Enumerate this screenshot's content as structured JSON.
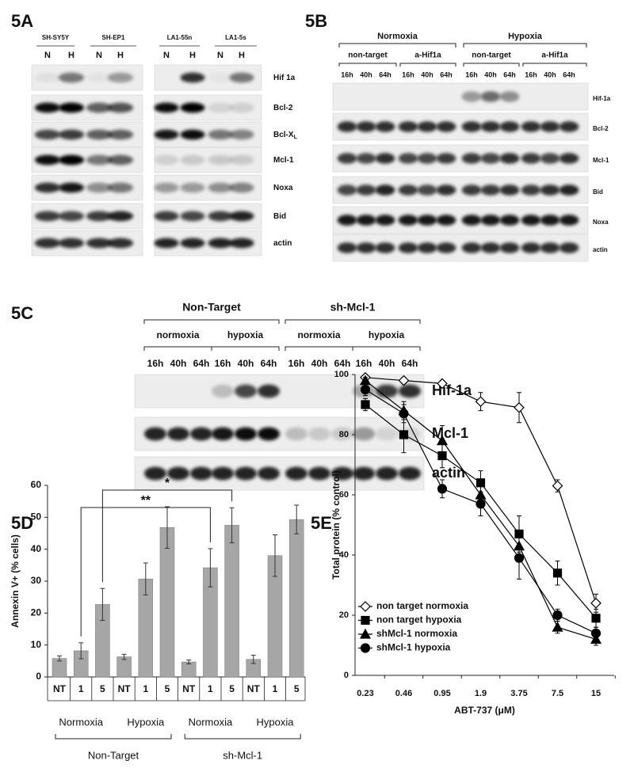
{
  "panels": {
    "a": {
      "label": "5A",
      "groups": [
        {
          "name": "SH-SY5Y",
          "lanes": [
            "N",
            "H"
          ]
        },
        {
          "name": "SH-EP1",
          "lanes": [
            "N",
            "H"
          ]
        },
        {
          "name": "LA1-55n",
          "lanes": [
            "N",
            "H"
          ]
        },
        {
          "name": "LA1-5s",
          "lanes": [
            "N",
            "H"
          ]
        }
      ],
      "rows": [
        {
          "text": "Hif 1a"
        },
        {
          "text": "Bcl-2"
        },
        {
          "text": "Bcl-X",
          "sub": "L"
        },
        {
          "text": "Mcl-1"
        },
        {
          "text": "Noxa"
        },
        {
          "text": "Bid"
        },
        {
          "text": "actin"
        }
      ]
    },
    "b": {
      "label": "5B",
      "conditions": [
        "Normoxia",
        "Hypoxia"
      ],
      "treatments": [
        "non-target",
        "a-Hif1a",
        "non-target",
        "a-Hif1a"
      ],
      "times": [
        "16h",
        "40h",
        "64h"
      ],
      "rows": [
        "Hif-1a",
        "Bcl-2",
        "Mcl-1",
        "Bid",
        "Noxa",
        "actin"
      ]
    },
    "c": {
      "label": "5C",
      "groups": [
        "Non-Target",
        "sh-Mcl-1"
      ],
      "conditions": [
        "normoxia",
        "hypoxia"
      ],
      "times": [
        "16h",
        "40h",
        "64h"
      ],
      "rows": [
        "Hif-1a",
        "Mcl-1",
        "actin"
      ]
    }
  },
  "chart_data": [
    {
      "type": "bar",
      "label": "5D",
      "ylabel": "Annexin V+ (% cells)",
      "categories": [
        "NT",
        "1",
        "5",
        "NT",
        "1",
        "5",
        "NT",
        "1",
        "5",
        "NT",
        "1",
        "5"
      ],
      "values": [
        5.8,
        8.2,
        22.7,
        6.3,
        30.7,
        46.8,
        4.7,
        34.2,
        47.5,
        5.5,
        38,
        49.3
      ],
      "errors": [
        0.8,
        2.5,
        5,
        0.8,
        5,
        6.5,
        0.6,
        6,
        5.5,
        1.3,
        6.5,
        4.5
      ],
      "groups": [
        "Normoxia",
        "Hypoxia",
        "Normoxia",
        "Hypoxia"
      ],
      "supergroups": [
        "Non-Target",
        "sh-Mcl-1"
      ],
      "annotations": [
        "**",
        "*"
      ],
      "color": "#a6a6a6",
      "ylim": [
        0,
        60
      ],
      "yticks": [
        0,
        10,
        20,
        30,
        40,
        50,
        60
      ]
    },
    {
      "type": "line",
      "label": "5E",
      "ylabel": "Total protein (% control)",
      "xlabel": "ABT-737 (μM)",
      "categories": [
        "0.23",
        "0.46",
        "0.95",
        "1.9",
        "3.75",
        "7.5",
        "15"
      ],
      "ylim": [
        0,
        100
      ],
      "yticks": [
        0,
        20,
        40,
        60,
        80,
        100
      ],
      "legend": "lower-left",
      "series": [
        {
          "name": "non target normoxia",
          "color": "#000000",
          "marker": "diamond",
          "filled": false,
          "values": [
            99,
            98,
            97,
            91,
            89,
            63,
            24
          ],
          "errors": [
            1,
            1,
            1,
            3,
            5,
            2,
            3
          ]
        },
        {
          "name": "non target hypoxia",
          "color": "#000000",
          "marker": "square",
          "filled": true,
          "values": [
            90,
            80,
            73,
            64,
            47,
            34,
            19
          ],
          "errors": [
            2,
            6,
            4,
            4,
            6,
            4,
            3
          ]
        },
        {
          "name": "shMcl-1 normoxia",
          "color": "#000000",
          "marker": "triangle",
          "filled": true,
          "values": [
            98,
            88,
            78,
            60,
            43,
            16,
            12
          ],
          "errors": [
            1,
            3,
            5,
            4,
            4,
            2,
            2
          ]
        },
        {
          "name": "shMcl-1 hypoxia",
          "color": "#000000",
          "marker": "circle",
          "filled": true,
          "values": [
            95,
            87,
            62,
            57,
            39,
            20,
            14
          ],
          "errors": [
            2,
            3,
            3,
            4,
            7,
            2,
            2
          ]
        }
      ]
    }
  ]
}
